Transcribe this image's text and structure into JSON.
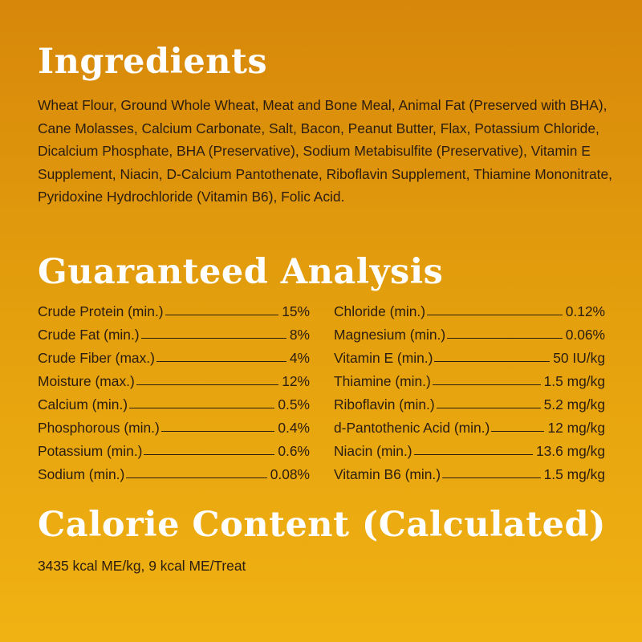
{
  "ingredients": {
    "heading": "Ingredients",
    "text": "Wheat Flour, Ground Whole Wheat, Meat and Bone Meal, Animal Fat (Preserved with BHA), Cane Molasses, Calcium Carbonate, Salt, Bacon, Peanut Butter, Flax, Potassium Chloride, Dicalcium Phosphate, BHA (Preservative), Sodium Metabisulfite (Preservative), Vitamin E Supplement, Niacin, D-Calcium Pantothenate, Riboflavin Supplement, Thiamine Mononitrate, Pyridoxine Hydrochloride (Vitamin B6), Folic Acid."
  },
  "analysis": {
    "heading": "Guaranteed Analysis",
    "left": [
      {
        "label": "Crude Protein (min.)",
        "value": "15%"
      },
      {
        "label": "Crude Fat (min.)",
        "value": "8%"
      },
      {
        "label": "Crude Fiber (max.)",
        "value": "4%"
      },
      {
        "label": "Moisture (max.)",
        "value": "12%"
      },
      {
        "label": "Calcium (min.)",
        "value": "0.5%"
      },
      {
        "label": "Phosphorous (min.)",
        "value": "0.4%"
      },
      {
        "label": "Potassium (min.)",
        "value": "0.6%"
      },
      {
        "label": "Sodium (min.)",
        "value": "0.08%"
      }
    ],
    "right": [
      {
        "label": "Chloride (min.)",
        "value": "0.12%"
      },
      {
        "label": "Magnesium (min.)",
        "value": "0.06%"
      },
      {
        "label": "Vitamin E (min.)",
        "value": "50 IU/kg"
      },
      {
        "label": "Thiamine (min.)",
        "value": "1.5 mg/kg"
      },
      {
        "label": "Riboflavin (min.)",
        "value": "5.2 mg/kg"
      },
      {
        "label": "d-Pantothenic Acid (min.)",
        "value": "12 mg/kg"
      },
      {
        "label": "Niacin (min.)",
        "value": "13.6 mg/kg"
      },
      {
        "label": "Vitamin B6 (min.)",
        "value": "1.5 mg/kg"
      }
    ]
  },
  "calorie": {
    "heading": "Calorie Content (Calculated)",
    "text": "3435 kcal ME/kg, 9 kcal ME/Treat"
  }
}
